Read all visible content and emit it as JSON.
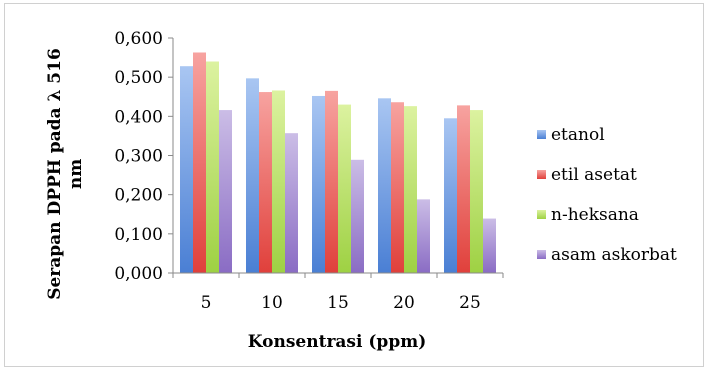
{
  "chart_data": {
    "type": "bar",
    "title": "",
    "xlabel": "Konsentrasi (ppm)",
    "ylabel_line1": "Serapan DPPH pada λ 516",
    "ylabel_line2": "nm",
    "categories": [
      "5",
      "10",
      "15",
      "20",
      "25"
    ],
    "ylim": [
      0,
      0.6
    ],
    "yticks": [
      0,
      0.1,
      0.2,
      0.3,
      0.4,
      0.5,
      0.6
    ],
    "ytick_labels": [
      "0,000",
      "0,100",
      "0,200",
      "0,300",
      "0,400",
      "0,500",
      "0,600"
    ],
    "grid": false,
    "legend_position": "right",
    "series": [
      {
        "name": "etanol",
        "color_top": "#a9c6f2",
        "color_bottom": "#4a7fd4",
        "values": [
          0.528,
          0.497,
          0.452,
          0.446,
          0.395
        ]
      },
      {
        "name": "etil asetat",
        "color_top": "#f7a3a0",
        "color_bottom": "#e0403b",
        "values": [
          0.563,
          0.462,
          0.465,
          0.436,
          0.428
        ]
      },
      {
        "name": "n-heksana",
        "color_top": "#dcf2a0",
        "color_bottom": "#9ed143",
        "values": [
          0.54,
          0.466,
          0.43,
          0.426,
          0.416
        ]
      },
      {
        "name": "asam askorbat",
        "color_top": "#cbbde6",
        "color_bottom": "#8a6cc4",
        "values": [
          0.416,
          0.357,
          0.289,
          0.188,
          0.139
        ]
      }
    ]
  }
}
